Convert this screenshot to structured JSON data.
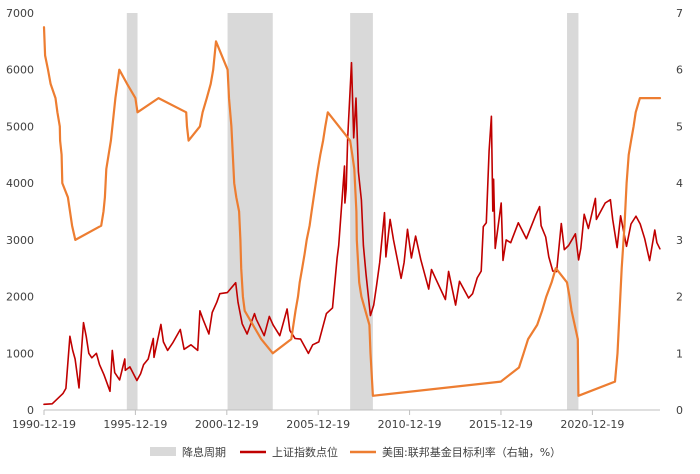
{
  "chart_data": {
    "type": "line",
    "title": "",
    "x_axis": {
      "type": "date",
      "range": [
        "1990-12-19",
        "2024-08-31"
      ],
      "tick_labels": [
        "1990-12-19",
        "1995-12-19",
        "2000-12-19",
        "2005-12-19",
        "2010-12-19",
        "2015-12-19",
        "2020-12-19"
      ],
      "ticks": [
        "1990-12-19",
        "1995-12-19",
        "2000-12-19",
        "2005-12-19",
        "2010-12-19",
        "2015-12-19",
        "2020-12-19"
      ]
    },
    "y_left": {
      "range": [
        0,
        7000
      ],
      "ticks": [
        0,
        1000,
        2000,
        3000,
        4000,
        5000,
        6000,
        7000
      ]
    },
    "y_right": {
      "range": [
        0,
        7
      ],
      "ticks": [
        0,
        1,
        2,
        3,
        4,
        5,
        6,
        7
      ]
    },
    "grid": false,
    "legend": {
      "position": "bottom",
      "items": [
        {
          "label": "降息周期",
          "kind": "area",
          "color": "#d9d9d9"
        },
        {
          "label": "上证指数点位",
          "kind": "line",
          "color": "#c00000"
        },
        {
          "label": "美国:联邦基金目标利率（右轴，%）",
          "kind": "line",
          "color": "#ed7d31"
        }
      ]
    },
    "rate_cut_periods": [
      [
        "1995-07-01",
        "1996-01-31"
      ],
      [
        "2001-01-03",
        "2003-06-25"
      ],
      [
        "2007-09-18",
        "2008-12-16"
      ],
      [
        "2019-07-31",
        "2020-03-15"
      ]
    ],
    "series": [
      {
        "name": "上证指数点位",
        "axis": "left",
        "color": "#c00000",
        "points": [
          [
            "1990-12-19",
            100
          ],
          [
            "1991-06-01",
            110
          ],
          [
            "1991-12-31",
            290
          ],
          [
            "1992-03-01",
            380
          ],
          [
            "1992-05-20",
            1300
          ],
          [
            "1992-06-10",
            1200
          ],
          [
            "1992-07-15",
            1050
          ],
          [
            "1992-09-01",
            900
          ],
          [
            "1992-11-17",
            390
          ],
          [
            "1993-01-10",
            1100
          ],
          [
            "1993-02-16",
            1540
          ],
          [
            "1993-04-10",
            1300
          ],
          [
            "1993-06-01",
            1000
          ],
          [
            "1993-08-01",
            920
          ],
          [
            "1993-11-01",
            1000
          ],
          [
            "1994-01-01",
            800
          ],
          [
            "1994-04-01",
            620
          ],
          [
            "1994-07-29",
            330
          ],
          [
            "1994-09-13",
            1050
          ],
          [
            "1994-11-01",
            660
          ],
          [
            "1995-02-07",
            530
          ],
          [
            "1995-05-22",
            900
          ],
          [
            "1995-06-01",
            700
          ],
          [
            "1995-09-01",
            760
          ],
          [
            "1996-01-19",
            520
          ],
          [
            "1996-04-01",
            640
          ],
          [
            "1996-06-01",
            800
          ],
          [
            "1996-09-01",
            900
          ],
          [
            "1996-12-11",
            1260
          ],
          [
            "1996-12-25",
            930
          ],
          [
            "1997-05-12",
            1510
          ],
          [
            "1997-07-01",
            1200
          ],
          [
            "1997-09-23",
            1050
          ],
          [
            "1998-01-01",
            1180
          ],
          [
            "1998-06-03",
            1420
          ],
          [
            "1998-08-18",
            1070
          ],
          [
            "1999-01-01",
            1150
          ],
          [
            "1999-05-17",
            1050
          ],
          [
            "1999-06-30",
            1750
          ],
          [
            "1999-09-01",
            1600
          ],
          [
            "1999-12-27",
            1340
          ],
          [
            "2000-03-01",
            1720
          ],
          [
            "2000-06-01",
            1900
          ],
          [
            "2000-08-01",
            2050
          ],
          [
            "2000-12-29",
            2070
          ],
          [
            "2001-06-14",
            2245
          ],
          [
            "2001-07-30",
            1900
          ],
          [
            "2001-10-22",
            1520
          ],
          [
            "2002-01-29",
            1340
          ],
          [
            "2002-06-25",
            1700
          ],
          [
            "2002-08-01",
            1600
          ],
          [
            "2003-01-06",
            1310
          ],
          [
            "2003-04-16",
            1650
          ],
          [
            "2003-07-01",
            1500
          ],
          [
            "2003-11-13",
            1310
          ],
          [
            "2004-04-07",
            1780
          ],
          [
            "2004-06-01",
            1400
          ],
          [
            "2004-09-13",
            1260
          ],
          [
            "2005-01-01",
            1250
          ],
          [
            "2005-06-06",
            998
          ],
          [
            "2005-09-01",
            1150
          ],
          [
            "2006-01-01",
            1200
          ],
          [
            "2006-06-01",
            1700
          ],
          [
            "2006-10-01",
            1800
          ],
          [
            "2006-12-31",
            2680
          ],
          [
            "2007-02-01",
            2900
          ],
          [
            "2007-05-29",
            4300
          ],
          [
            "2007-06-05",
            3650
          ],
          [
            "2007-07-01",
            3900
          ],
          [
            "2007-08-01",
            4800
          ],
          [
            "2007-10-16",
            6124
          ],
          [
            "2007-11-28",
            4800
          ],
          [
            "2008-01-14",
            5500
          ],
          [
            "2008-03-01",
            4200
          ],
          [
            "2008-05-01",
            3700
          ],
          [
            "2008-06-10",
            2900
          ],
          [
            "2008-08-01",
            2400
          ],
          [
            "2008-10-28",
            1664
          ],
          [
            "2009-01-01",
            1850
          ],
          [
            "2009-03-01",
            2200
          ],
          [
            "2009-05-01",
            2600
          ],
          [
            "2009-08-04",
            3478
          ],
          [
            "2009-09-01",
            2700
          ],
          [
            "2009-11-24",
            3360
          ],
          [
            "2010-02-01",
            3000
          ],
          [
            "2010-07-02",
            2320
          ],
          [
            "2010-09-01",
            2600
          ],
          [
            "2010-11-08",
            3186
          ],
          [
            "2011-01-25",
            2680
          ],
          [
            "2011-04-18",
            3067
          ],
          [
            "2011-08-01",
            2650
          ],
          [
            "2012-01-06",
            2132
          ],
          [
            "2012-03-02",
            2478
          ],
          [
            "2012-06-01",
            2300
          ],
          [
            "2012-12-04",
            1949
          ],
          [
            "2013-02-06",
            2444
          ],
          [
            "2013-06-25",
            1849
          ],
          [
            "2013-09-12",
            2270
          ],
          [
            "2014-03-12",
            1974
          ],
          [
            "2014-06-01",
            2050
          ],
          [
            "2014-09-01",
            2330
          ],
          [
            "2014-11-20",
            2450
          ],
          [
            "2014-12-31",
            3234
          ],
          [
            "2015-03-01",
            3300
          ],
          [
            "2015-04-27",
            4570
          ],
          [
            "2015-06-12",
            5178
          ],
          [
            "2015-07-08",
            3507
          ],
          [
            "2015-07-24",
            4070
          ],
          [
            "2015-08-26",
            2850
          ],
          [
            "2015-12-23",
            3650
          ],
          [
            "2016-01-28",
            2638
          ],
          [
            "2016-04-01",
            3000
          ],
          [
            "2016-07-01",
            2950
          ],
          [
            "2016-11-29",
            3300
          ],
          [
            "2017-05-11",
            3020
          ],
          [
            "2017-11-14",
            3440
          ],
          [
            "2018-01-29",
            3587
          ],
          [
            "2018-03-01",
            3250
          ],
          [
            "2018-06-01",
            3050
          ],
          [
            "2018-08-01",
            2700
          ],
          [
            "2018-10-19",
            2450
          ],
          [
            "2019-01-04",
            2440
          ],
          [
            "2019-04-08",
            3288
          ],
          [
            "2019-06-06",
            2827
          ],
          [
            "2019-09-01",
            2900
          ],
          [
            "2020-01-14",
            3106
          ],
          [
            "2020-03-19",
            2646
          ],
          [
            "2020-05-01",
            2850
          ],
          [
            "2020-07-09",
            3450
          ],
          [
            "2020-10-01",
            3200
          ],
          [
            "2021-02-18",
            3731
          ],
          [
            "2021-03-09",
            3360
          ],
          [
            "2021-07-01",
            3550
          ],
          [
            "2021-09-01",
            3650
          ],
          [
            "2021-12-13",
            3708
          ],
          [
            "2022-01-28",
            3360
          ],
          [
            "2022-04-27",
            2863
          ],
          [
            "2022-07-05",
            3425
          ],
          [
            "2022-10-31",
            2886
          ],
          [
            "2023-01-30",
            3280
          ],
          [
            "2023-05-09",
            3418
          ],
          [
            "2023-08-01",
            3280
          ],
          [
            "2023-10-31",
            3020
          ],
          [
            "2024-02-05",
            2635
          ],
          [
            "2024-05-20",
            3174
          ],
          [
            "2024-07-01",
            2950
          ],
          [
            "2024-08-30",
            2842
          ]
        ]
      },
      {
        "name": "美国:联邦基金目标利率（右轴，%）",
        "axis": "right",
        "color": "#ed7d31",
        "points": [
          [
            "1990-12-19",
            6.75
          ],
          [
            "1991-01-09",
            6.25
          ],
          [
            "1991-03-08",
            6.0
          ],
          [
            "1991-04-30",
            5.75
          ],
          [
            "1991-08-06",
            5.5
          ],
          [
            "1991-09-13",
            5.25
          ],
          [
            "1991-10-31",
            5.0
          ],
          [
            "1991-11-06",
            4.75
          ],
          [
            "1991-12-06",
            4.5
          ],
          [
            "1991-12-20",
            4.0
          ],
          [
            "1992-04-09",
            3.75
          ],
          [
            "1992-07-02",
            3.25
          ],
          [
            "1992-09-04",
            3.0
          ],
          [
            "1994-02-04",
            3.25
          ],
          [
            "1994-03-22",
            3.5
          ],
          [
            "1994-04-18",
            3.75
          ],
          [
            "1994-05-17",
            4.25
          ],
          [
            "1994-08-16",
            4.75
          ],
          [
            "1994-11-15",
            5.5
          ],
          [
            "1995-02-01",
            6.0
          ],
          [
            "1995-07-06",
            5.75
          ],
          [
            "1995-12-19",
            5.5
          ],
          [
            "1996-01-31",
            5.25
          ],
          [
            "1997-03-25",
            5.5
          ],
          [
            "1998-09-29",
            5.25
          ],
          [
            "1998-10-15",
            5.0
          ],
          [
            "1998-11-17",
            4.75
          ],
          [
            "1999-06-30",
            5.0
          ],
          [
            "1999-08-24",
            5.25
          ],
          [
            "1999-11-16",
            5.5
          ],
          [
            "2000-02-02",
            5.75
          ],
          [
            "2000-03-21",
            6.0
          ],
          [
            "2000-05-16",
            6.5
          ],
          [
            "2001-01-03",
            6.0
          ],
          [
            "2001-01-31",
            5.5
          ],
          [
            "2001-03-20",
            5.0
          ],
          [
            "2001-04-18",
            4.5
          ],
          [
            "2001-05-15",
            4.0
          ],
          [
            "2001-06-27",
            3.75
          ],
          [
            "2001-08-21",
            3.5
          ],
          [
            "2001-09-17",
            3.0
          ],
          [
            "2001-10-02",
            2.5
          ],
          [
            "2001-11-06",
            2.0
          ],
          [
            "2001-12-11",
            1.75
          ],
          [
            "2002-11-06",
            1.25
          ],
          [
            "2003-06-25",
            1.0
          ],
          [
            "2004-06-30",
            1.25
          ],
          [
            "2004-08-10",
            1.5
          ],
          [
            "2004-09-21",
            1.75
          ],
          [
            "2004-11-10",
            2.0
          ],
          [
            "2004-12-14",
            2.25
          ],
          [
            "2005-02-02",
            2.5
          ],
          [
            "2005-03-22",
            2.75
          ],
          [
            "2005-05-03",
            3.0
          ],
          [
            "2005-06-30",
            3.25
          ],
          [
            "2005-08-09",
            3.5
          ],
          [
            "2005-09-20",
            3.75
          ],
          [
            "2005-11-01",
            4.0
          ],
          [
            "2005-12-13",
            4.25
          ],
          [
            "2006-01-31",
            4.5
          ],
          [
            "2006-03-28",
            4.75
          ],
          [
            "2006-05-10",
            5.0
          ],
          [
            "2006-06-29",
            5.25
          ],
          [
            "2007-09-18",
            4.75
          ],
          [
            "2007-10-31",
            4.5
          ],
          [
            "2007-12-11",
            4.25
          ],
          [
            "2008-01-22",
            3.5
          ],
          [
            "2008-01-30",
            3.0
          ],
          [
            "2008-03-18",
            2.25
          ],
          [
            "2008-04-30",
            2.0
          ],
          [
            "2008-10-08",
            1.5
          ],
          [
            "2008-10-29",
            1.0
          ],
          [
            "2008-12-16",
            0.25
          ],
          [
            "2015-12-16",
            0.5
          ],
          [
            "2016-12-14",
            0.75
          ],
          [
            "2017-03-15",
            1.0
          ],
          [
            "2017-06-14",
            1.25
          ],
          [
            "2017-12-13",
            1.5
          ],
          [
            "2018-03-21",
            1.75
          ],
          [
            "2018-06-13",
            2.0
          ],
          [
            "2018-09-26",
            2.25
          ],
          [
            "2018-12-19",
            2.5
          ],
          [
            "2019-07-31",
            2.25
          ],
          [
            "2019-09-18",
            2.0
          ],
          [
            "2019-10-30",
            1.75
          ],
          [
            "2020-03-03",
            1.25
          ],
          [
            "2020-03-15",
            0.25
          ],
          [
            "2022-03-16",
            0.5
          ],
          [
            "2022-05-04",
            1.0
          ],
          [
            "2022-06-15",
            1.75
          ],
          [
            "2022-07-27",
            2.5
          ],
          [
            "2022-09-21",
            3.25
          ],
          [
            "2022-11-02",
            4.0
          ],
          [
            "2022-12-14",
            4.5
          ],
          [
            "2023-02-01",
            4.75
          ],
          [
            "2023-03-22",
            5.0
          ],
          [
            "2023-05-03",
            5.25
          ],
          [
            "2023-07-26",
            5.5
          ],
          [
            "2024-08-31",
            5.5
          ]
        ]
      }
    ]
  }
}
